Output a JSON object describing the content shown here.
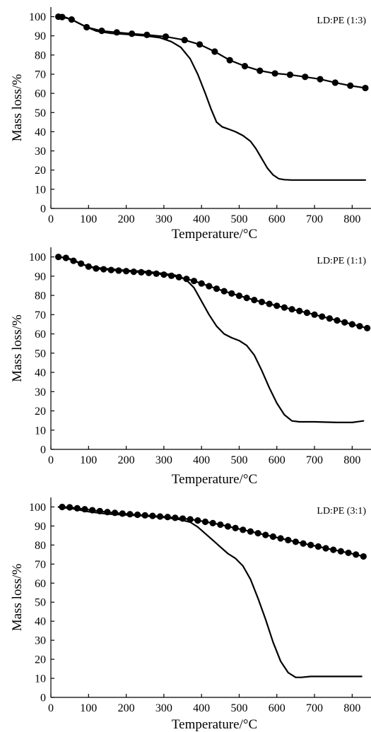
{
  "chart_data": [
    {
      "type": "line",
      "annotation": "LD:PE (1:3)",
      "xlabel": "Temperature/°C",
      "ylabel": "Mass loss/%",
      "xlim": [
        0,
        850
      ],
      "ylim": [
        0,
        105
      ],
      "xticks": [
        0,
        100,
        200,
        300,
        400,
        500,
        600,
        700,
        800
      ],
      "yticks": [
        0,
        10,
        20,
        30,
        40,
        50,
        60,
        70,
        80,
        90,
        100
      ],
      "grid": false,
      "series": [
        {
          "marker": "circle",
          "x": [
            20,
            30,
            55,
            95,
            135,
            175,
            215,
            255,
            305,
            355,
            395,
            435,
            475,
            515,
            555,
            595,
            635,
            675,
            715,
            755,
            795,
            835
          ],
          "y": [
            100,
            99.8,
            98.5,
            94.5,
            92.6,
            91.8,
            91.1,
            90.5,
            89.6,
            87.8,
            85.5,
            81.8,
            77.3,
            74.2,
            71.8,
            70.4,
            69.7,
            68.6,
            67.4,
            65.6,
            64,
            62.8
          ]
        },
        {
          "marker": "none",
          "x": [
            20,
            40,
            60,
            90,
            120,
            160,
            200,
            250,
            290,
            320,
            345,
            370,
            390,
            410,
            425,
            440,
            455,
            470,
            490,
            510,
            530,
            545,
            560,
            575,
            590,
            605,
            620,
            640,
            700,
            835
          ],
          "y": [
            100,
            99.6,
            98,
            95,
            92.5,
            91.3,
            90.8,
            90,
            89,
            87,
            84,
            78,
            70,
            60,
            52,
            45,
            42.5,
            41.5,
            40,
            38,
            35,
            31,
            26,
            21,
            17.5,
            15.5,
            15,
            14.8,
            14.8,
            14.8
          ]
        }
      ]
    },
    {
      "type": "line",
      "annotation": "LD:PE (1:1)",
      "xlabel": "Temperature/°C",
      "ylabel": "Mass loss/%",
      "xlim": [
        0,
        850
      ],
      "ylim": [
        0,
        105
      ],
      "xticks": [
        0,
        100,
        200,
        300,
        400,
        500,
        600,
        700,
        800
      ],
      "yticks": [
        0,
        10,
        20,
        30,
        40,
        50,
        60,
        70,
        80,
        90,
        100
      ],
      "grid": false,
      "series": [
        {
          "marker": "circle",
          "x": [
            20,
            40,
            60,
            80,
            100,
            120,
            140,
            160,
            180,
            200,
            220,
            240,
            260,
            280,
            300,
            320,
            340,
            360,
            380,
            400,
            420,
            440,
            460,
            480,
            500,
            520,
            540,
            560,
            580,
            600,
            620,
            640,
            660,
            680,
            700,
            720,
            740,
            760,
            780,
            800,
            820,
            840
          ],
          "y": [
            100,
            99.5,
            98,
            96.5,
            95,
            94,
            93.6,
            93.2,
            92.9,
            92.6,
            92.3,
            92,
            91.7,
            91.3,
            90.8,
            90.2,
            89.5,
            88.6,
            87.5,
            86.2,
            84.8,
            83.5,
            82.2,
            81,
            79.8,
            78.7,
            77.6,
            76.6,
            75.6,
            74.6,
            73.7,
            72.8,
            71.9,
            71,
            70,
            69,
            68,
            67,
            66,
            65,
            64,
            63
          ]
        },
        {
          "marker": "none",
          "x": [
            20,
            40,
            60,
            80,
            100,
            140,
            200,
            260,
            300,
            330,
            360,
            380,
            400,
            420,
            440,
            460,
            480,
            500,
            520,
            540,
            560,
            580,
            600,
            620,
            640,
            660,
            700,
            760,
            800,
            830
          ],
          "y": [
            100,
            99.5,
            98.5,
            96.5,
            95,
            94,
            93,
            92.3,
            91.3,
            90.5,
            88,
            84,
            77,
            70,
            64,
            60,
            58,
            56.5,
            54,
            49,
            41,
            32,
            24,
            18,
            14.8,
            14.3,
            14.3,
            14,
            14,
            14.8
          ]
        }
      ]
    },
    {
      "type": "line",
      "annotation": "LD:PE (3:1)",
      "xlabel": "Temperature/°C",
      "ylabel": "Mass loss/%",
      "xlim": [
        0,
        850
      ],
      "ylim": [
        0,
        105
      ],
      "xticks": [
        0,
        100,
        200,
        300,
        400,
        500,
        600,
        700,
        800
      ],
      "yticks": [
        0,
        10,
        20,
        30,
        40,
        50,
        60,
        70,
        80,
        90,
        100
      ],
      "grid": false,
      "series": [
        {
          "marker": "circle",
          "x": [
            30,
            50,
            70,
            90,
            110,
            130,
            150,
            170,
            190,
            210,
            230,
            250,
            270,
            290,
            310,
            330,
            350,
            370,
            390,
            410,
            430,
            450,
            470,
            490,
            510,
            530,
            550,
            570,
            590,
            610,
            630,
            650,
            670,
            690,
            710,
            730,
            750,
            770,
            790,
            810,
            830
          ],
          "y": [
            100,
            99.8,
            99.3,
            98.8,
            98.3,
            97.8,
            97.3,
            96.9,
            96.5,
            96.2,
            95.9,
            95.6,
            95.3,
            95,
            94.7,
            94.3,
            93.9,
            93.5,
            92.9,
            92.2,
            91.5,
            90.7,
            89.8,
            88.9,
            88,
            87.1,
            86.2,
            85.3,
            84.4,
            83.5,
            82.6,
            81.7,
            80.8,
            80,
            79.2,
            78.3,
            77.5,
            76.7,
            75.9,
            75,
            74
          ]
        },
        {
          "marker": "none",
          "x": [
            20,
            60,
            100,
            150,
            200,
            250,
            300,
            340,
            370,
            390,
            410,
            430,
            450,
            470,
            490,
            510,
            530,
            550,
            570,
            590,
            610,
            630,
            650,
            665,
            690,
            750,
            825
          ],
          "y": [
            100,
            99,
            97.5,
            96.3,
            95.8,
            95.3,
            94.5,
            93.5,
            92,
            89.5,
            86,
            82.5,
            79,
            75.5,
            73,
            69,
            62,
            52,
            41,
            29,
            19,
            13,
            10.5,
            10.5,
            11,
            11,
            11
          ]
        }
      ]
    }
  ]
}
